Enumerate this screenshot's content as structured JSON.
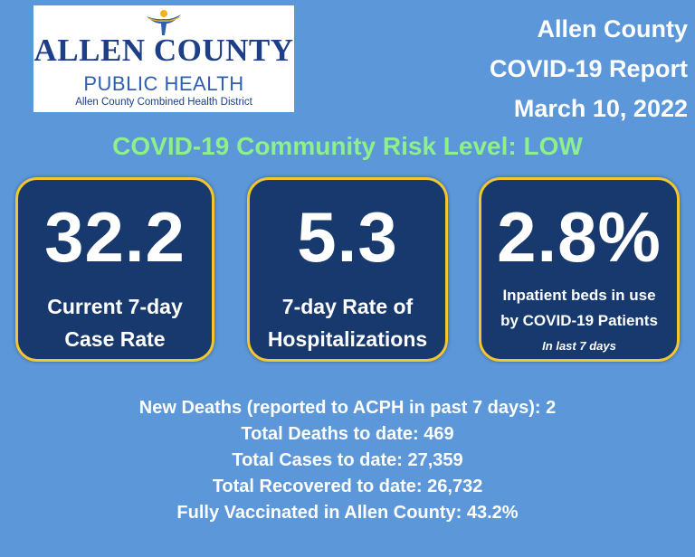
{
  "logo": {
    "line1": "ALLEN COUNTY",
    "line2": "PUBLIC HEALTH",
    "line3": "Allen County Combined Health District",
    "colors": {
      "navy": "#1c3f88",
      "blue": "#2f5fb0",
      "gold": "#f2b21c"
    }
  },
  "header": {
    "line1": "Allen County",
    "line2": "COVID-19 Report",
    "line3": "March 10, 2022"
  },
  "risk_level": "COVID-19 Community Risk Level: LOW",
  "cards": [
    {
      "value": "32.2",
      "label_line1": "Current 7-day",
      "label_line2": "Case Rate"
    },
    {
      "value": "5.3",
      "label_line1": "7-day Rate of",
      "label_line2": "Hospitalizations"
    },
    {
      "value": "2.8%",
      "label_line1": "Inpatient beds in use",
      "label_line2": "by COVID-19 Patients",
      "note": "In last  7 days"
    }
  ],
  "stats": [
    "New Deaths (reported to ACPH in past 7 days): 2",
    "Total Deaths to date: 469",
    "Total Cases to date: 27,359",
    "Total Recovered to date: 26,732",
    "Fully Vaccinated in Allen County: 43.2%"
  ],
  "colors": {
    "background": "#5b97d9",
    "card": "#17396e",
    "card_border": "#f2c531",
    "risk_text": "#8ef08a"
  }
}
